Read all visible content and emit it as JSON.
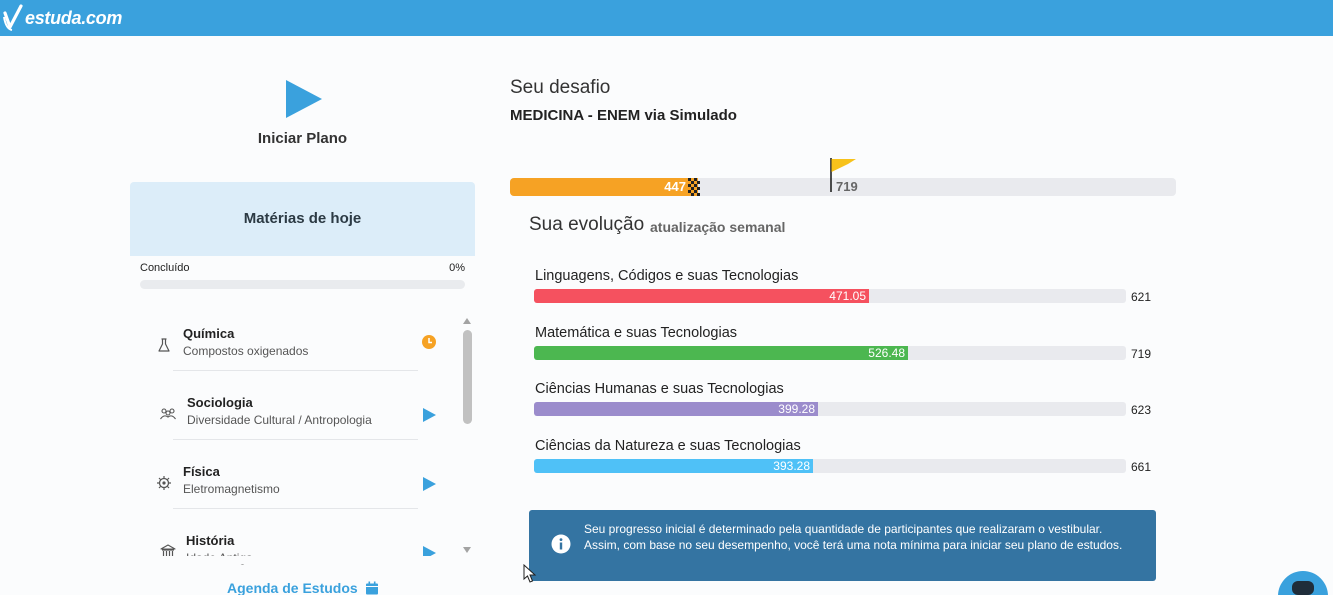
{
  "app": {
    "logo_text": "estuda.com"
  },
  "plan": {
    "start_label": "Iniciar Plano"
  },
  "today": {
    "title": "Matérias de hoje",
    "done_label": "Concluído",
    "done_percent": "0%",
    "done_fraction": 0,
    "subjects": [
      {
        "name": "Química",
        "topic": "Compostos oxigenados",
        "icon": "flask-icon",
        "action": "clock-icon"
      },
      {
        "name": "Sociologia",
        "topic": "Diversidade Cultural / Antropologia",
        "icon": "people-icon",
        "action": "play-icon"
      },
      {
        "name": "Física",
        "topic": "Eletromagnetismo",
        "icon": "atom-icon",
        "action": "play-icon"
      },
      {
        "name": "História",
        "topic": "Idade Antiga",
        "icon": "museum-icon",
        "action": "play-icon"
      }
    ],
    "agenda_label": "Agenda de Estudos"
  },
  "challenge": {
    "title": "Seu desafio",
    "subtitle": "MEDICINA - ENEM via Simulado",
    "current": 447,
    "current_label": "447",
    "goal": 719,
    "goal_label": "719",
    "scale_max": 1000
  },
  "evolution": {
    "title": "Sua evolução",
    "note": "atualização semanal",
    "areas": [
      {
        "name": "Linguagens, Códigos e suas Tecnologias",
        "value": 471.05,
        "value_label": "471.05",
        "max": 621,
        "max_label": "621",
        "color": "#f5515f"
      },
      {
        "name": "Matemática e suas Tecnologias",
        "value": 526.48,
        "value_label": "526.48",
        "max": 719,
        "max_label": "719",
        "color": "#4cb750"
      },
      {
        "name": "Ciências Humanas e suas Tecnologias",
        "value": 399.28,
        "value_label": "399.28",
        "max": 623,
        "max_label": "623",
        "color": "#9b8ccc"
      },
      {
        "name": "Ciências da Natureza e suas Tecnologias",
        "value": 393.28,
        "value_label": "393.28",
        "max": 661,
        "max_label": "661",
        "color": "#4fc1f7"
      }
    ],
    "scale_max": 1000
  },
  "info": {
    "text": "Seu progresso inicial é determinado pela quantidade de participantes que realizaram o vestibular. Assim, com base no seu desempenho, você terá uma nota mínima para iniciar seu plano de estudos."
  },
  "colors": {
    "brand": "#3aa1dd",
    "challenge_fill": "#f6a224",
    "info_bg": "#3474a2"
  }
}
